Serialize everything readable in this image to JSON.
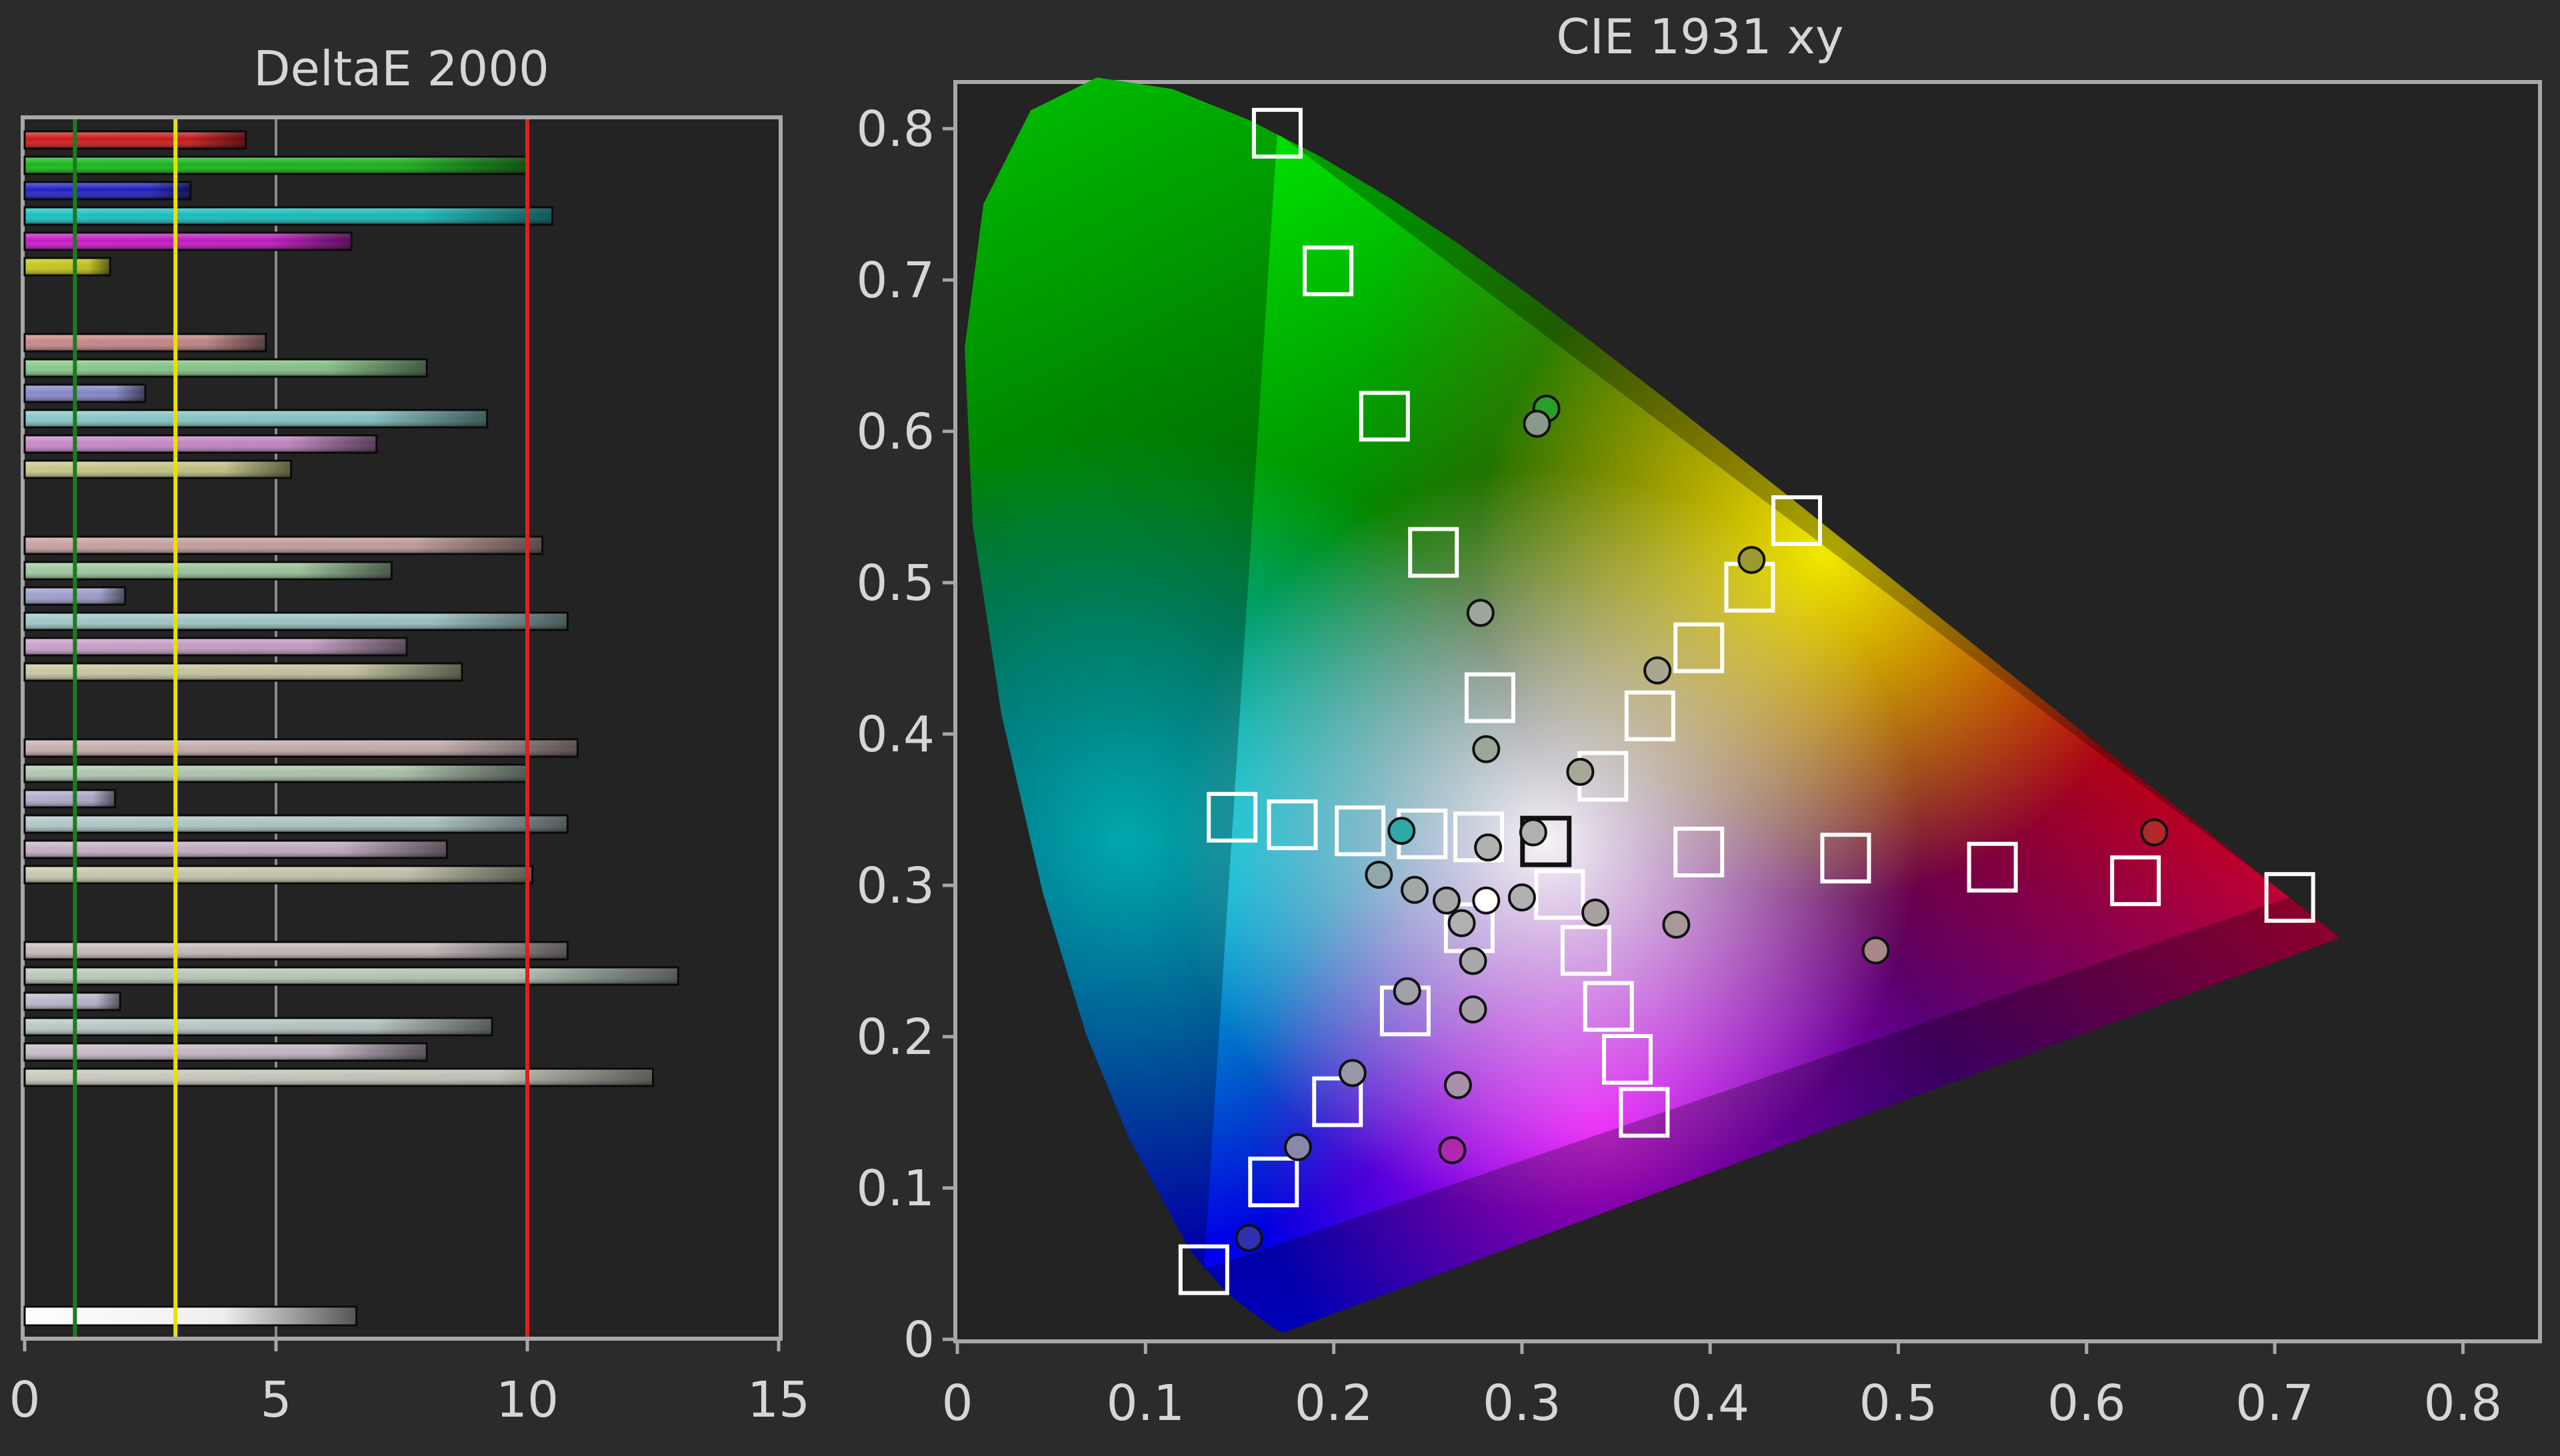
{
  "chart_data": [
    {
      "type": "bar",
      "title": "DeltaE 2000",
      "xlim": [
        0,
        15
      ],
      "xticks": [
        "0",
        "5",
        "10",
        "15"
      ],
      "grid": true,
      "reference_lines": [
        {
          "value": 1,
          "color": "#1f7a1f"
        },
        {
          "value": 3,
          "color": "#e8e000"
        },
        {
          "value": 10,
          "color": "#e02020"
        }
      ],
      "groups": [
        [
          {
            "value": 4.4,
            "color": "#d01818"
          },
          {
            "value": 10.0,
            "color": "#18b818"
          },
          {
            "value": 3.3,
            "color": "#2020c8"
          },
          {
            "value": 10.5,
            "color": "#18c0c0"
          },
          {
            "value": 6.5,
            "color": "#c818c8"
          },
          {
            "value": 1.7,
            "color": "#c8c818"
          }
        ],
        [
          {
            "value": 4.8,
            "color": "#c88888"
          },
          {
            "value": 8.0,
            "color": "#88c888"
          },
          {
            "value": 2.4,
            "color": "#8888d0"
          },
          {
            "value": 9.2,
            "color": "#88c8c8"
          },
          {
            "value": 7.0,
            "color": "#c888c8"
          },
          {
            "value": 5.3,
            "color": "#c8c888"
          }
        ],
        [
          {
            "value": 10.3,
            "color": "#c8a0a0"
          },
          {
            "value": 7.3,
            "color": "#a0c8a0"
          },
          {
            "value": 2.0,
            "color": "#a0a0d0"
          },
          {
            "value": 10.8,
            "color": "#a0c8c8"
          },
          {
            "value": 7.6,
            "color": "#c8a0c8"
          },
          {
            "value": 8.7,
            "color": "#c8c8a0"
          }
        ],
        [
          {
            "value": 11.0,
            "color": "#c8b0b0"
          },
          {
            "value": 10.0,
            "color": "#b0c8b0"
          },
          {
            "value": 1.8,
            "color": "#b0b0d0"
          },
          {
            "value": 10.8,
            "color": "#b0c8c8"
          },
          {
            "value": 8.4,
            "color": "#c8b0c8"
          },
          {
            "value": 10.1,
            "color": "#c8c8b0"
          }
        ],
        [
          {
            "value": 10.8,
            "color": "#c8bcbc"
          },
          {
            "value": 13.0,
            "color": "#bcc8bc"
          },
          {
            "value": 1.9,
            "color": "#bcbcd0"
          },
          {
            "value": 9.3,
            "color": "#bcc8c8"
          },
          {
            "value": 8.0,
            "color": "#c8bcc8"
          },
          {
            "value": 12.5,
            "color": "#c8c8bc"
          }
        ]
      ],
      "average": {
        "value": 6.6,
        "color": "#ffffff"
      }
    },
    {
      "type": "scatter",
      "title": "CIE 1931 xy",
      "xlim": [
        0,
        0.85
      ],
      "ylim": [
        0,
        0.85
      ],
      "xticks": [
        "0",
        "0.1",
        "0.2",
        "0.3",
        "0.4",
        "0.5",
        "0.6",
        "0.7",
        "0.8"
      ],
      "yticks": [
        "0",
        "0.1",
        "0.2",
        "0.3",
        "0.4",
        "0.5",
        "0.6",
        "0.7",
        "0.8"
      ],
      "gamut_triangle": {
        "red": [
          0.708,
          0.292
        ],
        "green": [
          0.17,
          0.797
        ],
        "blue": [
          0.131,
          0.046
        ]
      },
      "targets": [
        {
          "x": 0.17,
          "y": 0.797
        },
        {
          "x": 0.197,
          "y": 0.706
        },
        {
          "x": 0.227,
          "y": 0.61
        },
        {
          "x": 0.253,
          "y": 0.52
        },
        {
          "x": 0.283,
          "y": 0.424
        },
        {
          "x": 0.446,
          "y": 0.541
        },
        {
          "x": 0.421,
          "y": 0.497
        },
        {
          "x": 0.394,
          "y": 0.457
        },
        {
          "x": 0.368,
          "y": 0.412
        },
        {
          "x": 0.343,
          "y": 0.372
        },
        {
          "x": 0.708,
          "y": 0.292
        },
        {
          "x": 0.626,
          "y": 0.303
        },
        {
          "x": 0.55,
          "y": 0.312
        },
        {
          "x": 0.472,
          "y": 0.318
        },
        {
          "x": 0.394,
          "y": 0.322
        },
        {
          "x": 0.146,
          "y": 0.345
        },
        {
          "x": 0.178,
          "y": 0.34
        },
        {
          "x": 0.214,
          "y": 0.336
        },
        {
          "x": 0.247,
          "y": 0.334
        },
        {
          "x": 0.277,
          "y": 0.332
        },
        {
          "x": 0.131,
          "y": 0.046
        },
        {
          "x": 0.168,
          "y": 0.104
        },
        {
          "x": 0.202,
          "y": 0.157
        },
        {
          "x": 0.238,
          "y": 0.217
        },
        {
          "x": 0.272,
          "y": 0.272
        },
        {
          "x": 0.365,
          "y": 0.15
        },
        {
          "x": 0.356,
          "y": 0.185
        },
        {
          "x": 0.346,
          "y": 0.22
        },
        {
          "x": 0.334,
          "y": 0.257
        },
        {
          "x": 0.32,
          "y": 0.294
        }
      ],
      "white_target": {
        "x": 0.3127,
        "y": 0.329
      },
      "measurements": [
        {
          "x": 0.313,
          "y": 0.615,
          "color": "#28a028"
        },
        {
          "x": 0.308,
          "y": 0.605,
          "color": "#8a9a8a"
        },
        {
          "x": 0.278,
          "y": 0.48,
          "color": "#9aa89a"
        },
        {
          "x": 0.281,
          "y": 0.39,
          "color": "#9aa89a"
        },
        {
          "x": 0.422,
          "y": 0.515,
          "color": "#9a9a30"
        },
        {
          "x": 0.372,
          "y": 0.442,
          "color": "#a8a890"
        },
        {
          "x": 0.331,
          "y": 0.375,
          "color": "#a8a898"
        },
        {
          "x": 0.636,
          "y": 0.335,
          "color": "#b02828"
        },
        {
          "x": 0.488,
          "y": 0.257,
          "color": "#a88888"
        },
        {
          "x": 0.382,
          "y": 0.274,
          "color": "#a89898"
        },
        {
          "x": 0.339,
          "y": 0.282,
          "color": "#a8a0a0"
        },
        {
          "x": 0.236,
          "y": 0.336,
          "color": "#30a8a8"
        },
        {
          "x": 0.224,
          "y": 0.307,
          "color": "#90a8a8"
        },
        {
          "x": 0.243,
          "y": 0.297,
          "color": "#a0a8a8"
        },
        {
          "x": 0.26,
          "y": 0.29,
          "color": "#a8a8a8"
        },
        {
          "x": 0.155,
          "y": 0.067,
          "color": "#3030b0"
        },
        {
          "x": 0.181,
          "y": 0.127,
          "color": "#8888a8"
        },
        {
          "x": 0.21,
          "y": 0.176,
          "color": "#9898a8"
        },
        {
          "x": 0.239,
          "y": 0.23,
          "color": "#a0a0a8"
        },
        {
          "x": 0.263,
          "y": 0.125,
          "color": "#b028b0"
        },
        {
          "x": 0.266,
          "y": 0.168,
          "color": "#a890a8"
        },
        {
          "x": 0.274,
          "y": 0.218,
          "color": "#a8a0a8"
        },
        {
          "x": 0.274,
          "y": 0.25,
          "color": "#a8a8a8"
        },
        {
          "x": 0.282,
          "y": 0.325,
          "color": "#b0b0b0"
        },
        {
          "x": 0.3,
          "y": 0.292,
          "color": "#b0b0b0"
        },
        {
          "x": 0.306,
          "y": 0.335,
          "color": "#b0b0b0"
        },
        {
          "x": 0.268,
          "y": 0.275,
          "color": "#b0b0b0"
        },
        {
          "x": 0.281,
          "y": 0.29,
          "color": "#ffffff"
        }
      ]
    }
  ]
}
